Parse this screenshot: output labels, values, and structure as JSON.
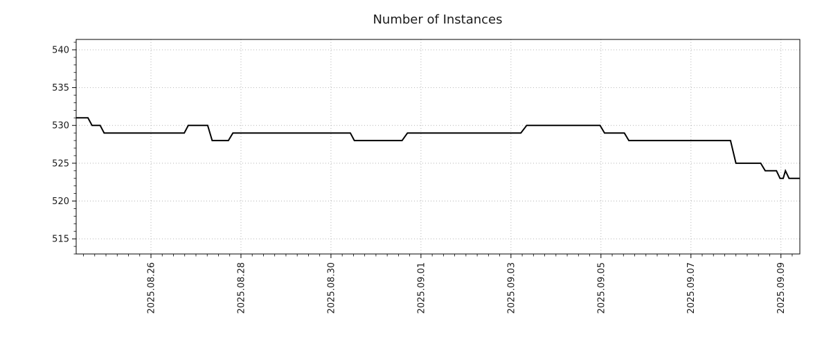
{
  "chart_data": {
    "type": "line",
    "title": "Number of Instances",
    "series_name": "instances",
    "x_unit": "days relative to 2025.08.26 00:00",
    "x": [
      -1.662,
      -1.4,
      -1.31,
      -1.13,
      -1.04,
      0.74,
      0.83,
      1.26,
      1.36,
      1.72,
      1.82,
      4.43,
      4.52,
      5.58,
      5.7,
      8.22,
      8.35,
      9.98,
      10.08,
      10.52,
      10.62,
      12.88,
      13.0,
      13.55,
      13.65,
      13.9,
      13.98,
      14.05,
      14.1,
      14.18,
      14.42
    ],
    "y": [
      531,
      531,
      530,
      530,
      529,
      529,
      530,
      530,
      528,
      528,
      529,
      529,
      528,
      528,
      529,
      529,
      530,
      530,
      529,
      529,
      528,
      528,
      525,
      525,
      524,
      524,
      523,
      523,
      524,
      523,
      523
    ],
    "xlim": [
      -1.662,
      14.42
    ],
    "ylim": [
      513.0,
      541.37
    ],
    "yticks": [
      515,
      520,
      525,
      530,
      535,
      540
    ],
    "xticks": [
      {
        "day": 0,
        "label": "2025.08.26"
      },
      {
        "day": 2,
        "label": "2025.08.28"
      },
      {
        "day": 4,
        "label": "2025.08.30"
      },
      {
        "day": 6,
        "label": "2025.09.01"
      },
      {
        "day": 8,
        "label": "2025.09.03"
      },
      {
        "day": 10,
        "label": "2025.09.05"
      },
      {
        "day": 12,
        "label": "2025.09.07"
      },
      {
        "day": 14,
        "label": "2025.09.09"
      }
    ],
    "x_minor_step": 0.25,
    "y_minor_step": 1,
    "grid": "dotted",
    "legend": "none",
    "colors": {
      "line": "#000000",
      "grid": "#b3b3b3",
      "axis": "#000000",
      "background": "#ffffff"
    },
    "line_width": 2
  }
}
